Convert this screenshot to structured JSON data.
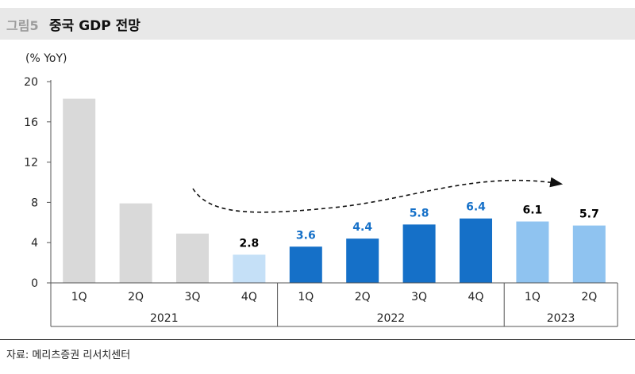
{
  "header": {
    "figure_label": "그림5",
    "title": "중국 GDP 전망"
  },
  "source": "자료: 메리츠증권 리서치센터",
  "chart_data": {
    "type": "bar",
    "ylabel": "(% YoY)",
    "ylim": [
      0,
      20
    ],
    "yticks": [
      0,
      4,
      8,
      12,
      16,
      20
    ],
    "categories": [
      "1Q",
      "2Q",
      "3Q",
      "4Q",
      "1Q",
      "2Q",
      "3Q",
      "4Q",
      "1Q",
      "2Q"
    ],
    "groups": [
      {
        "label": "2021",
        "count": 4
      },
      {
        "label": "2022",
        "count": 4
      },
      {
        "label": "2023",
        "count": 2
      }
    ],
    "values": [
      18.3,
      7.9,
      4.9,
      2.8,
      3.6,
      4.4,
      5.8,
      6.4,
      6.1,
      5.7
    ],
    "data_labels": [
      "",
      "",
      "",
      "2.8",
      "3.6",
      "4.4",
      "5.8",
      "6.4",
      "6.1",
      "5.7"
    ],
    "colors": [
      "#d9d9d9",
      "#d9d9d9",
      "#d9d9d9",
      "#c5e0f7",
      "#1570c8",
      "#1570c8",
      "#1570c8",
      "#1570c8",
      "#8fc3f0",
      "#8fc3f0"
    ],
    "label_colors": [
      "#000000",
      "#000000",
      "#000000",
      "#000000",
      "#1570c8",
      "#1570c8",
      "#1570c8",
      "#1570c8",
      "#000000",
      "#000000"
    ],
    "grid": false,
    "legend": "none",
    "annotation": "dashed-trend-arrow"
  }
}
